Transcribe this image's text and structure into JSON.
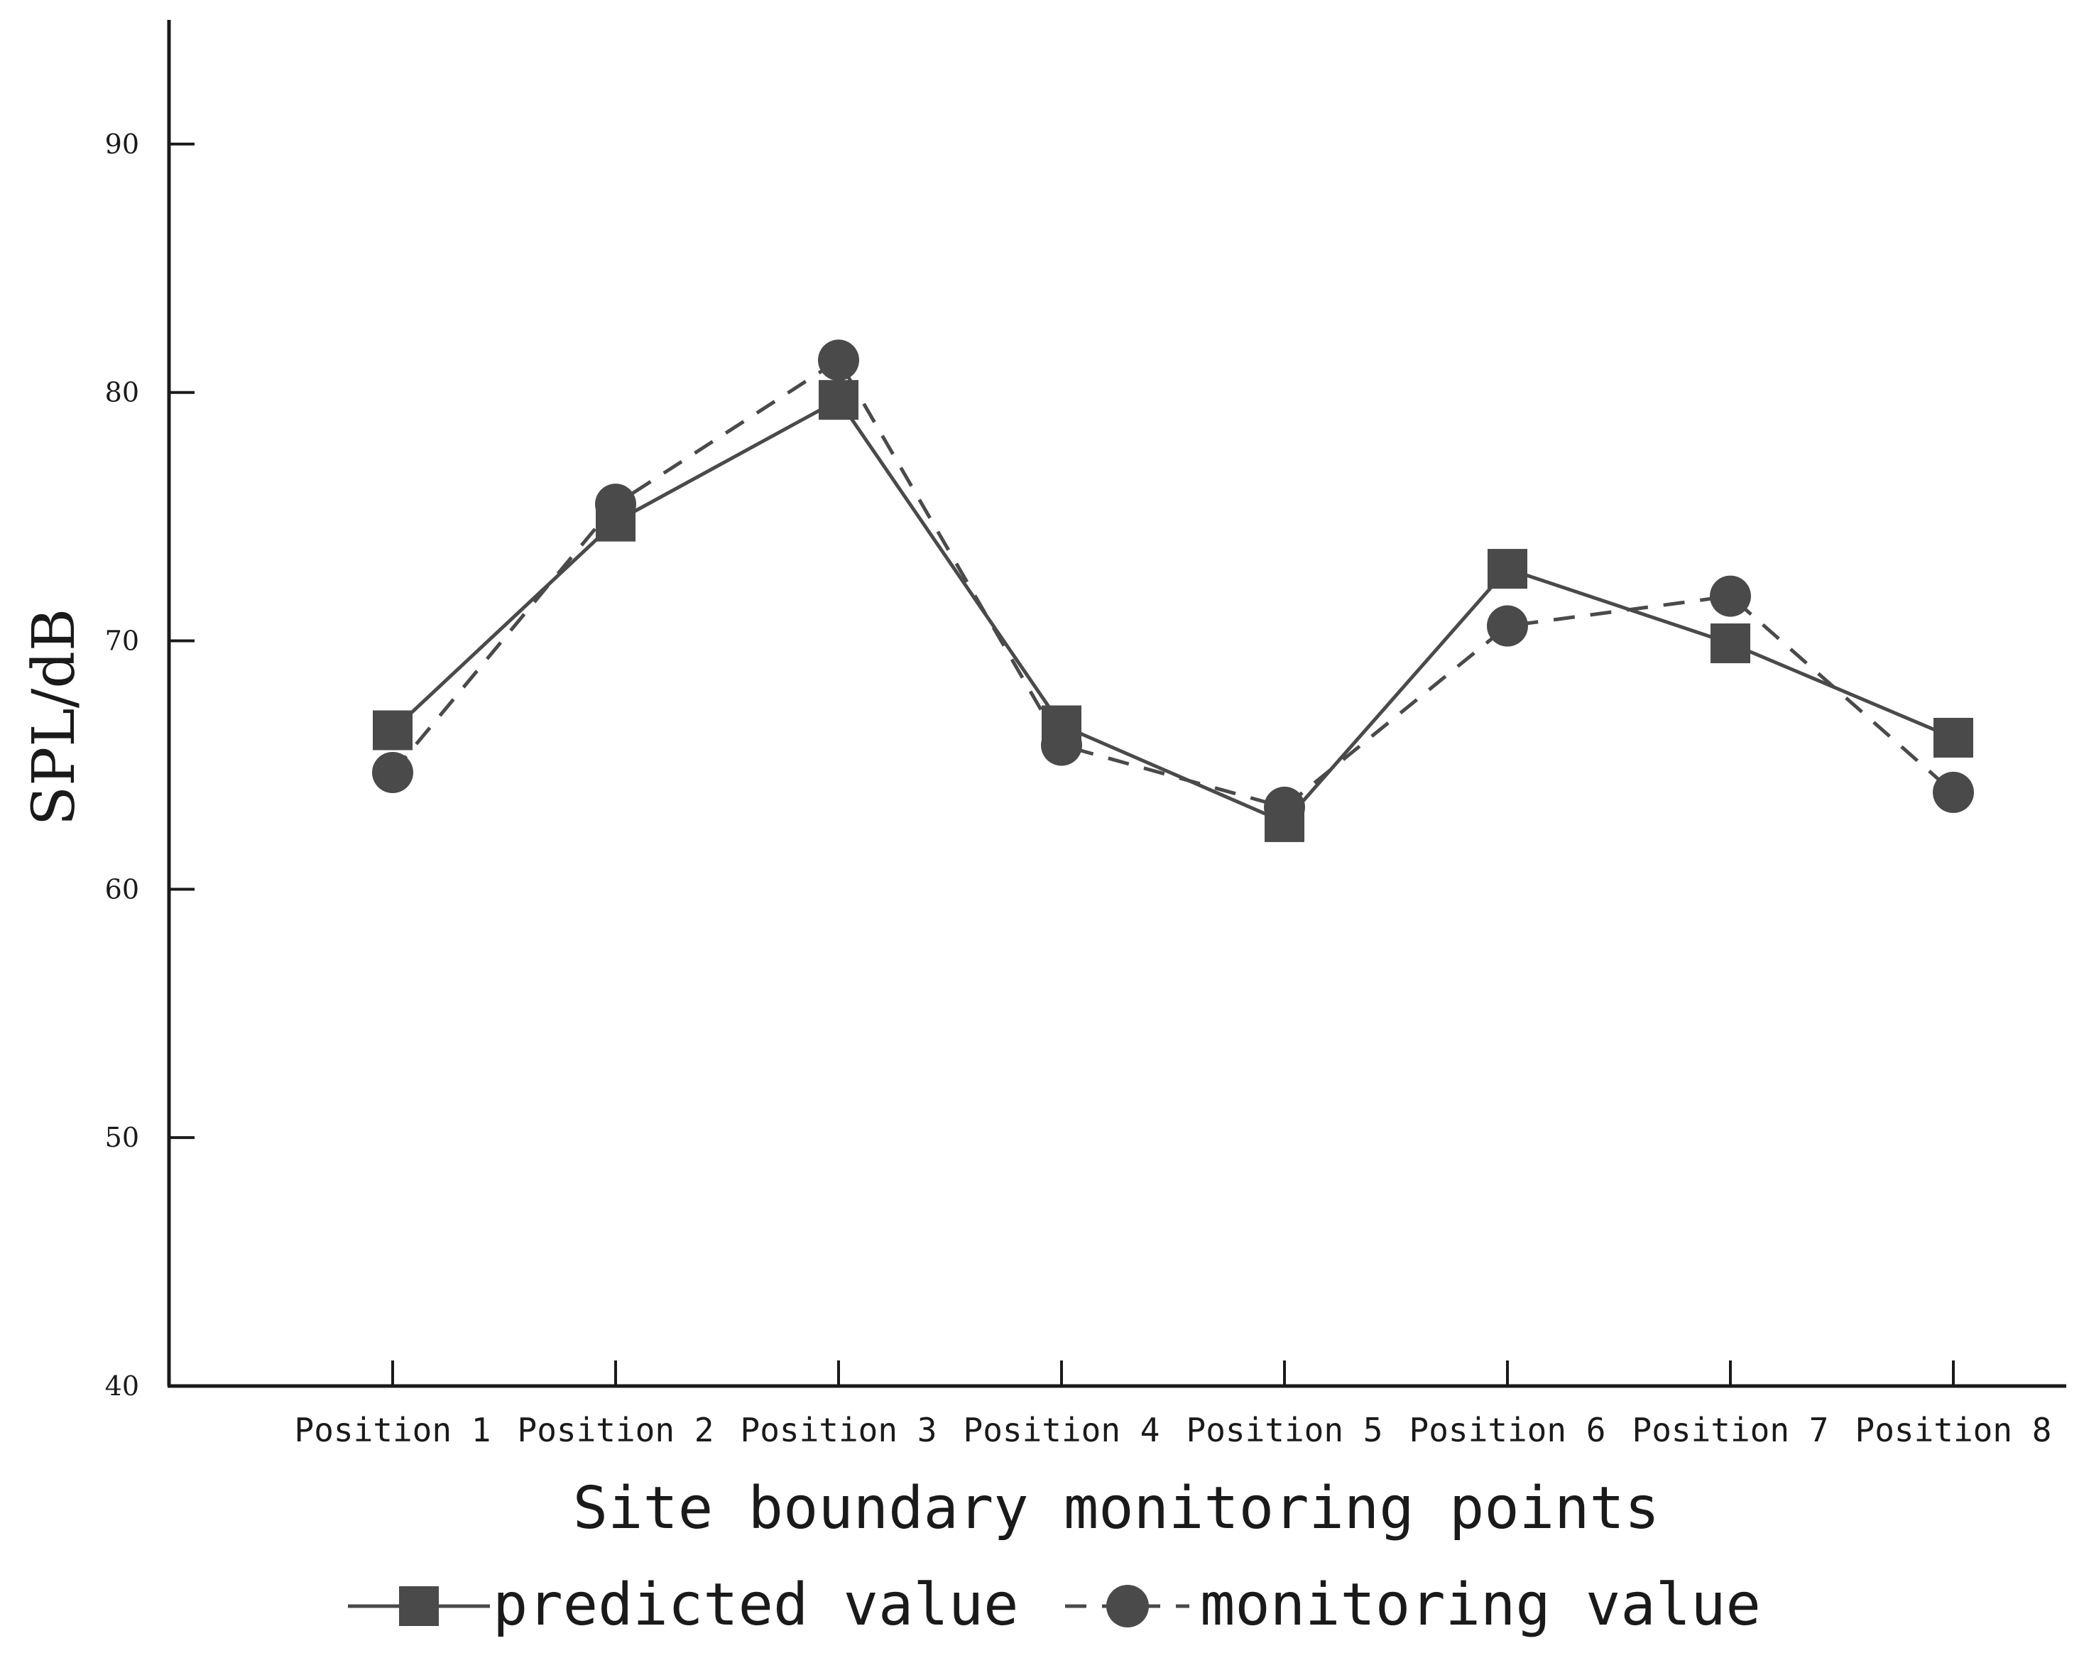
{
  "chart_data": {
    "type": "line",
    "xlabel": "Site boundary monitoring points",
    "ylabel": "SPL/dB",
    "categories": [
      "Position 1",
      "Position 2",
      "Position 3",
      "Position 4",
      "Position 5",
      "Position 6",
      "Position 7",
      "Position 8"
    ],
    "ylim": [
      40,
      95
    ],
    "yticks": [
      40,
      50,
      60,
      70,
      80,
      90
    ],
    "grid": false,
    "legend_position": "bottom",
    "series": [
      {
        "name": "predicted value",
        "values": [
          66.4,
          74.8,
          79.7,
          66.6,
          62.7,
          72.9,
          69.9,
          66.1
        ],
        "marker": "square",
        "line_style": "solid",
        "color": "#4a4a4a"
      },
      {
        "name": "monitoring value",
        "values": [
          64.7,
          75.5,
          81.3,
          65.8,
          63.3,
          70.6,
          71.8,
          63.9
        ],
        "marker": "circle",
        "line_style": "dashed",
        "color": "#4a4a4a"
      }
    ]
  }
}
